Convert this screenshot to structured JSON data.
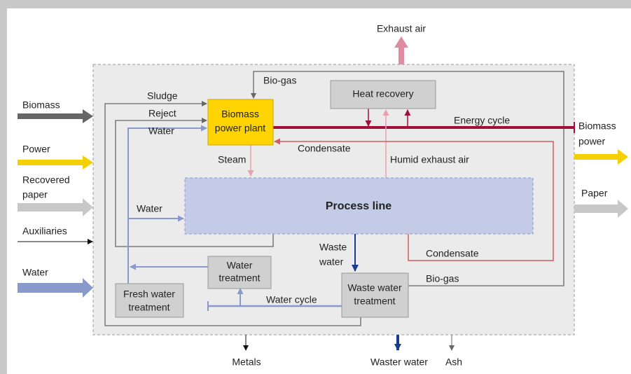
{
  "inputs": [
    "Biomass",
    "Power",
    [
      "Recovered",
      "paper"
    ],
    "Auxiliaries",
    "Water"
  ],
  "outputs": [
    [
      "Biomass",
      "power"
    ],
    "Paper"
  ],
  "top_output": "Exhaust air",
  "bottom_outputs": [
    "Metals",
    "Waster water",
    "Ash"
  ],
  "boxes": {
    "heat_recovery": "Heat recovery",
    "power_plant": [
      "Biomass",
      "power plant"
    ],
    "process_line": "Process line",
    "water_treatment": [
      "Water",
      "treatment"
    ],
    "fresh_water_treatment": [
      "Fresh water",
      "treatment"
    ],
    "waste_water_treatment": [
      "Waste water",
      "treatment"
    ]
  },
  "flows": {
    "bio_gas_top": "Bio-gas",
    "sludge": "Sludge",
    "reject": "Reject",
    "water_top": "Water",
    "water_mid": "Water",
    "steam": "Steam",
    "condensate_top": "Condensate",
    "energy_cycle": "Energy cycle",
    "humid_exhaust_air": "Humid exhaust air",
    "waste_water": [
      "Waste",
      "water"
    ],
    "condensate_bottom": "Condensate",
    "bio_gas_bottom": "Bio-gas",
    "water_cycle": "Water cycle"
  }
}
